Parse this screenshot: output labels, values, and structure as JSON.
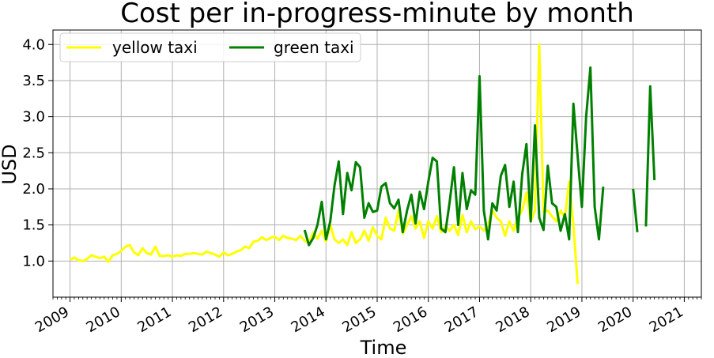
{
  "chart_data": {
    "type": "line",
    "title": "Cost per in-progress-minute by month",
    "xlabel": "Time",
    "ylabel": "USD",
    "xlim": [
      "2008-09",
      "2021-05"
    ],
    "ylim": [
      0.5,
      4.2
    ],
    "x_ticks": [
      "2009",
      "2010",
      "2011",
      "2012",
      "2013",
      "2014",
      "2015",
      "2016",
      "2017",
      "2018",
      "2019",
      "2020",
      "2021"
    ],
    "y_ticks": [
      "1.0",
      "1.5",
      "2.0",
      "2.5",
      "3.0",
      "3.5",
      "4.0"
    ],
    "grid": true,
    "legend_position": "top-left",
    "series": [
      {
        "name": "yellow taxi",
        "color": "#ffff00",
        "points": [
          [
            "2009-01",
            1.02
          ],
          [
            "2009-02",
            1.05
          ],
          [
            "2009-03",
            1.01
          ],
          [
            "2009-04",
            1.0
          ],
          [
            "2009-05",
            1.03
          ],
          [
            "2009-06",
            1.08
          ],
          [
            "2009-07",
            1.06
          ],
          [
            "2009-08",
            1.04
          ],
          [
            "2009-09",
            1.06
          ],
          [
            "2009-10",
            0.99
          ],
          [
            "2009-11",
            1.08
          ],
          [
            "2009-12",
            1.1
          ],
          [
            "2010-01",
            1.14
          ],
          [
            "2010-02",
            1.2
          ],
          [
            "2010-03",
            1.22
          ],
          [
            "2010-04",
            1.12
          ],
          [
            "2010-05",
            1.08
          ],
          [
            "2010-06",
            1.18
          ],
          [
            "2010-07",
            1.11
          ],
          [
            "2010-08",
            1.09
          ],
          [
            "2010-09",
            1.2
          ],
          [
            "2010-10",
            1.07
          ],
          [
            "2010-11",
            1.07
          ],
          [
            "2010-12",
            1.08
          ],
          [
            "2011-01",
            1.06
          ],
          [
            "2011-02",
            1.08
          ],
          [
            "2011-03",
            1.07
          ],
          [
            "2011-04",
            1.1
          ],
          [
            "2011-05",
            1.1
          ],
          [
            "2011-06",
            1.11
          ],
          [
            "2011-07",
            1.1
          ],
          [
            "2011-08",
            1.09
          ],
          [
            "2011-09",
            1.13
          ],
          [
            "2011-10",
            1.11
          ],
          [
            "2011-11",
            1.09
          ],
          [
            "2011-12",
            1.06
          ],
          [
            "2012-01",
            1.12
          ],
          [
            "2012-02",
            1.08
          ],
          [
            "2012-03",
            1.1
          ],
          [
            "2012-04",
            1.13
          ],
          [
            "2012-05",
            1.15
          ],
          [
            "2012-06",
            1.2
          ],
          [
            "2012-07",
            1.18
          ],
          [
            "2012-08",
            1.27
          ],
          [
            "2012-09",
            1.28
          ],
          [
            "2012-10",
            1.33
          ],
          [
            "2012-11",
            1.29
          ],
          [
            "2012-12",
            1.32
          ],
          [
            "2013-01",
            1.34
          ],
          [
            "2013-02",
            1.29
          ],
          [
            "2013-03",
            1.35
          ],
          [
            "2013-04",
            1.32
          ],
          [
            "2013-05",
            1.31
          ],
          [
            "2013-06",
            1.29
          ],
          [
            "2013-07",
            1.35
          ],
          [
            "2013-08",
            1.28
          ],
          [
            "2013-09",
            1.25
          ],
          [
            "2013-10",
            1.4
          ],
          [
            "2013-11",
            1.31
          ],
          [
            "2013-12",
            1.42
          ],
          [
            "2014-01",
            1.27
          ],
          [
            "2014-02",
            1.5
          ],
          [
            "2014-03",
            1.3
          ],
          [
            "2014-04",
            1.25
          ],
          [
            "2014-05",
            1.3
          ],
          [
            "2014-06",
            1.22
          ],
          [
            "2014-07",
            1.4
          ],
          [
            "2014-08",
            1.25
          ],
          [
            "2014-09",
            1.3
          ],
          [
            "2014-10",
            1.42
          ],
          [
            "2014-11",
            1.28
          ],
          [
            "2014-12",
            1.47
          ],
          [
            "2015-01",
            1.35
          ],
          [
            "2015-02",
            1.3
          ],
          [
            "2015-03",
            1.6
          ],
          [
            "2015-04",
            1.45
          ],
          [
            "2015-05",
            1.42
          ],
          [
            "2015-06",
            1.7
          ],
          [
            "2015-07",
            1.38
          ],
          [
            "2015-08",
            1.5
          ],
          [
            "2015-09",
            1.62
          ],
          [
            "2015-10",
            1.45
          ],
          [
            "2015-11",
            1.55
          ],
          [
            "2015-12",
            1.32
          ],
          [
            "2016-01",
            1.55
          ],
          [
            "2016-02",
            1.45
          ],
          [
            "2016-03",
            1.62
          ],
          [
            "2016-04",
            1.4
          ],
          [
            "2016-05",
            1.48
          ],
          [
            "2016-06",
            1.42
          ],
          [
            "2016-07",
            1.5
          ],
          [
            "2016-08",
            1.36
          ],
          [
            "2016-09",
            1.64
          ],
          [
            "2016-10",
            1.4
          ],
          [
            "2016-11",
            1.55
          ],
          [
            "2016-12",
            1.44
          ],
          [
            "2017-01",
            1.48
          ],
          [
            "2017-02",
            1.42
          ],
          [
            "2017-03",
            1.5
          ],
          [
            "2017-04",
            1.7
          ],
          [
            "2017-05",
            1.6
          ],
          [
            "2017-06",
            1.55
          ],
          [
            "2017-07",
            1.35
          ],
          [
            "2017-08",
            1.55
          ],
          [
            "2017-09",
            1.42
          ],
          [
            "2017-10",
            1.6
          ],
          [
            "2017-11",
            1.7
          ],
          [
            "2017-12",
            1.95
          ],
          [
            "2018-01",
            1.55
          ],
          [
            "2018-02",
            1.7
          ],
          [
            "2018-03",
            4.0
          ],
          [
            "2018-04",
            1.68
          ],
          [
            "2018-05",
            1.7
          ],
          [
            "2018-06",
            1.62
          ],
          [
            "2018-07",
            1.55
          ],
          [
            "2018-08",
            1.7
          ],
          [
            "2018-09",
            1.6
          ],
          [
            "2018-10",
            2.1
          ],
          [
            "2018-11",
            1.5
          ],
          [
            "2018-12",
            0.68
          ]
        ]
      },
      {
        "name": "green taxi",
        "color": "#008000",
        "points": [
          [
            "2013-08",
            1.43
          ],
          [
            "2013-09",
            1.22
          ],
          [
            "2013-10",
            1.32
          ],
          [
            "2013-11",
            1.5
          ],
          [
            "2013-12",
            1.82
          ],
          [
            "2014-01",
            1.3
          ],
          [
            "2014-02",
            1.55
          ],
          [
            "2014-03",
            2.05
          ],
          [
            "2014-04",
            2.38
          ],
          [
            "2014-05",
            1.65
          ],
          [
            "2014-06",
            2.22
          ],
          [
            "2014-07",
            1.98
          ],
          [
            "2014-08",
            2.37
          ],
          [
            "2014-09",
            2.3
          ],
          [
            "2014-10",
            1.6
          ],
          [
            "2014-11",
            1.8
          ],
          [
            "2014-12",
            1.68
          ],
          [
            "2015-01",
            1.7
          ],
          [
            "2015-02",
            2.03
          ],
          [
            "2015-03",
            2.08
          ],
          [
            "2015-04",
            1.8
          ],
          [
            "2015-05",
            1.73
          ],
          [
            "2015-06",
            1.85
          ],
          [
            "2015-07",
            1.4
          ],
          [
            "2015-08",
            1.7
          ],
          [
            "2015-09",
            1.92
          ],
          [
            "2015-10",
            1.52
          ],
          [
            "2015-11",
            1.96
          ],
          [
            "2015-12",
            1.72
          ],
          [
            "2016-01",
            2.1
          ],
          [
            "2016-02",
            2.43
          ],
          [
            "2016-03",
            2.38
          ],
          [
            "2016-04",
            1.45
          ],
          [
            "2016-05",
            1.4
          ],
          [
            "2016-06",
            1.82
          ],
          [
            "2016-07",
            2.3
          ],
          [
            "2016-08",
            1.5
          ],
          [
            "2016-09",
            2.22
          ],
          [
            "2016-10",
            1.72
          ],
          [
            "2016-11",
            1.98
          ],
          [
            "2016-12",
            1.92
          ],
          [
            "2017-01",
            3.56
          ],
          [
            "2017-02",
            1.7
          ],
          [
            "2017-03",
            1.3
          ],
          [
            "2017-04",
            1.8
          ],
          [
            "2017-05",
            1.7
          ],
          [
            "2017-06",
            2.18
          ],
          [
            "2017-07",
            2.33
          ],
          [
            "2017-08",
            1.75
          ],
          [
            "2017-09",
            2.1
          ],
          [
            "2017-10",
            1.4
          ],
          [
            "2017-11",
            2.2
          ],
          [
            "2017-12",
            2.62
          ],
          [
            "2018-01",
            1.55
          ],
          [
            "2018-02",
            2.88
          ],
          [
            "2018-03",
            1.6
          ],
          [
            "2018-04",
            1.43
          ],
          [
            "2018-05",
            2.32
          ],
          [
            "2018-06",
            1.8
          ],
          [
            "2018-07",
            1.75
          ],
          [
            "2018-08",
            1.42
          ],
          [
            "2018-09",
            1.65
          ],
          [
            "2018-10",
            1.3
          ],
          [
            "2018-11",
            3.18
          ],
          [
            "2018-12",
            2.45
          ],
          [
            "2019-01",
            1.75
          ],
          [
            "2019-02",
            3.0
          ],
          [
            "2019-03",
            3.68
          ],
          [
            "2019-04",
            1.75
          ],
          [
            "2019-05",
            1.3
          ],
          [
            "2019-06",
            2.03
          ],
          null,
          [
            "2020-01",
            2.0
          ],
          [
            "2020-02",
            1.4
          ],
          null,
          [
            "2020-04",
            1.48
          ],
          [
            "2020-05",
            3.42
          ],
          [
            "2020-06",
            2.12
          ]
        ]
      }
    ]
  }
}
